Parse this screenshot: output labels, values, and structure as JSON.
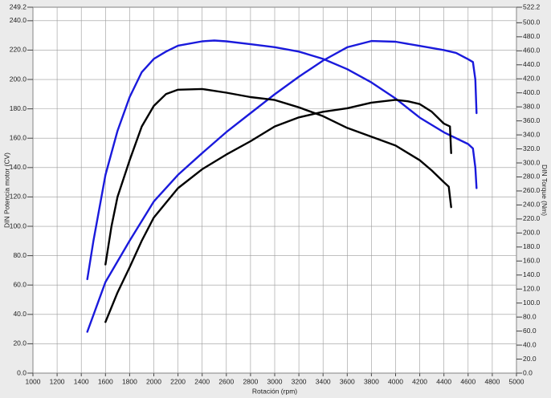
{
  "chart_data": {
    "type": "line",
    "xlabel": "Rotación (rpm)",
    "ylabel": "DIN Potencia motor (CV)",
    "y2label": "DIN Torque (Nm)",
    "xlim": [
      1000,
      5000
    ],
    "xticks": [
      1000,
      1200,
      1400,
      1600,
      1800,
      2000,
      2200,
      2400,
      2600,
      2800,
      3000,
      3200,
      3400,
      3600,
      3800,
      4000,
      4200,
      4400,
      4600,
      4800,
      5000
    ],
    "ylim": [
      0,
      249.2
    ],
    "yticks": [
      {
        "value": 0,
        "label": "0.0"
      },
      {
        "value": 20,
        "label": "20.0"
      },
      {
        "value": 40,
        "label": "40.0"
      },
      {
        "value": 60,
        "label": "60.0"
      },
      {
        "value": 80,
        "label": "80.0"
      },
      {
        "value": 100,
        "label": "100.0"
      },
      {
        "value": 120,
        "label": "120.0"
      },
      {
        "value": 140,
        "label": "140.0"
      },
      {
        "value": 160,
        "label": "160.0"
      },
      {
        "value": 180,
        "label": "180.0"
      },
      {
        "value": 200,
        "label": "200.0"
      },
      {
        "value": 220,
        "label": "220.0"
      },
      {
        "value": 240,
        "label": "240.0"
      },
      {
        "value": 249.2,
        "label": "249.2"
      }
    ],
    "y2lim": [
      0,
      522.2
    ],
    "y2ticks": [
      {
        "value": 0,
        "label": "0.0"
      },
      {
        "value": 20,
        "label": "20.0"
      },
      {
        "value": 40,
        "label": "40.0"
      },
      {
        "value": 60,
        "label": "60.0"
      },
      {
        "value": 80,
        "label": "80.0"
      },
      {
        "value": 100,
        "label": "100.0"
      },
      {
        "value": 120,
        "label": "120.0"
      },
      {
        "value": 140,
        "label": "140.0"
      },
      {
        "value": 160,
        "label": "160.0"
      },
      {
        "value": 180,
        "label": "180.0"
      },
      {
        "value": 200,
        "label": "200.0"
      },
      {
        "value": 220,
        "label": "220.0"
      },
      {
        "value": 240,
        "label": "240.0"
      },
      {
        "value": 260,
        "label": "260.0"
      },
      {
        "value": 280,
        "label": "280.0"
      },
      {
        "value": 300,
        "label": "300.0"
      },
      {
        "value": 320,
        "label": "320.0"
      },
      {
        "value": 340,
        "label": "340.0"
      },
      {
        "value": 360,
        "label": "360.0"
      },
      {
        "value": 380,
        "label": "380.0"
      },
      {
        "value": 400,
        "label": "400.0"
      },
      {
        "value": 420,
        "label": "420.0"
      },
      {
        "value": 440,
        "label": "440.0"
      },
      {
        "value": 460,
        "label": "460.0"
      },
      {
        "value": 480,
        "label": "480.0"
      },
      {
        "value": 500,
        "label": "500.0"
      },
      {
        "value": 522.2,
        "label": "522.2"
      }
    ],
    "grid": true,
    "series": [
      {
        "color": "#1a1adc",
        "axis": "y",
        "x": [
          1450,
          1500,
          1600,
          1700,
          1800,
          1900,
          2000,
          2100,
          2200,
          2400,
          2500,
          2600,
          2800,
          3000,
          3200,
          3400,
          3600,
          3800,
          4000,
          4200,
          4400,
          4600,
          4640,
          4660,
          4670
        ],
        "values": [
          64,
          90,
          135,
          165,
          188,
          205,
          214,
          219,
          223,
          226,
          226.5,
          226,
          224,
          222,
          219,
          214,
          207,
          198,
          187,
          174,
          164,
          156,
          153,
          140,
          126
        ]
      },
      {
        "color": "#1a1adc",
        "axis": "y2",
        "x": [
          1450,
          1600,
          1800,
          2000,
          2200,
          2400,
          2600,
          2800,
          3000,
          3200,
          3400,
          3600,
          3800,
          4000,
          4200,
          4400,
          4500,
          4600,
          4640,
          4660,
          4670
        ],
        "values": [
          59,
          130,
          189,
          245,
          283,
          314,
          344,
          371,
          398,
          423,
          446,
          465,
          474,
          473,
          467,
          461,
          457,
          448,
          444,
          419,
          371
        ]
      },
      {
        "color": "#000000",
        "axis": "y",
        "x": [
          1600,
          1650,
          1700,
          1800,
          1900,
          2000,
          2100,
          2200,
          2400,
          2600,
          2800,
          3000,
          3200,
          3400,
          3600,
          3800,
          4000,
          4200,
          4300,
          4400,
          4440,
          4460
        ],
        "values": [
          74,
          100,
          120,
          145,
          168,
          182,
          190,
          193,
          193.5,
          191,
          188,
          186,
          181,
          175,
          167,
          161,
          155,
          145,
          138,
          130,
          127,
          113
        ]
      },
      {
        "color": "#000000",
        "axis": "y2",
        "x": [
          1600,
          1700,
          1800,
          1900,
          2000,
          2200,
          2400,
          2600,
          2800,
          3000,
          3200,
          3400,
          3600,
          3800,
          4000,
          4100,
          4200,
          4300,
          4400,
          4450,
          4460
        ],
        "values": [
          73,
          115,
          151,
          189,
          222,
          264,
          291,
          312,
          331,
          352,
          365,
          373,
          378,
          386,
          390,
          388,
          384,
          373,
          356,
          352,
          314
        ]
      }
    ]
  }
}
